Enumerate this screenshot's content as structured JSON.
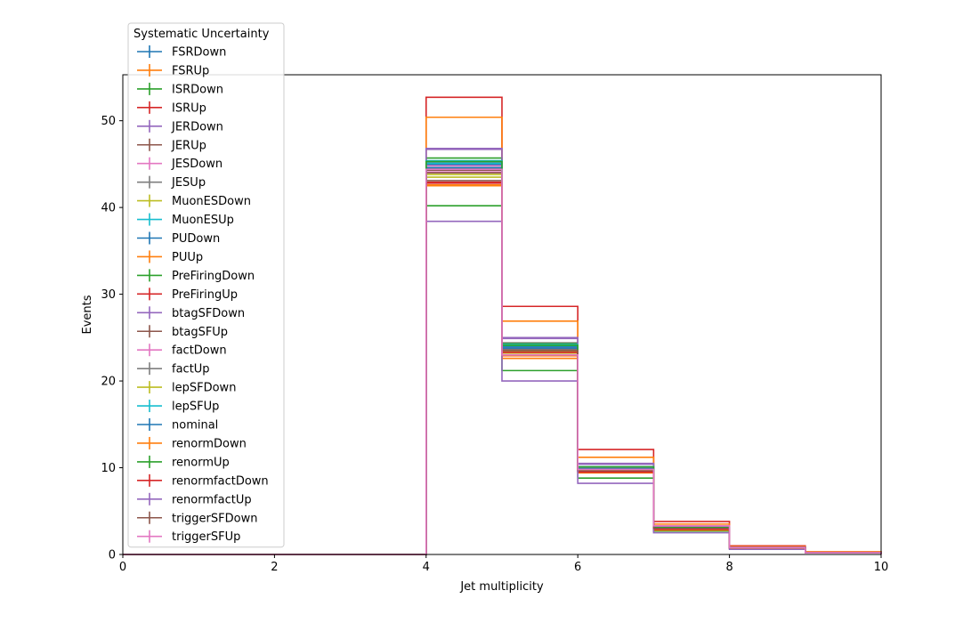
{
  "chart_data": {
    "type": "line",
    "style": "step-histogram",
    "xlabel": "Jet multiplicity",
    "ylabel": "Events",
    "xlim": [
      0,
      10
    ],
    "ylim": [
      0,
      55.3
    ],
    "xticks": [
      0,
      2,
      4,
      6,
      8,
      10
    ],
    "yticks": [
      0,
      10,
      20,
      30,
      40,
      50
    ],
    "bin_edges": [
      0,
      1,
      2,
      3,
      4,
      5,
      6,
      7,
      8,
      9,
      10
    ],
    "grid": false,
    "legend": {
      "title": "Systematic Uncertainty",
      "placement": "upper-left, above plot"
    },
    "series": [
      {
        "name": "FSRDown",
        "color": "#1f77b4",
        "values": [
          0,
          0,
          0,
          0,
          45.0,
          24.0,
          10.0,
          3.0,
          0.8,
          0.2
        ]
      },
      {
        "name": "FSRUp",
        "color": "#ff7f0e",
        "values": [
          0,
          0,
          0,
          0,
          42.6,
          22.9,
          9.6,
          2.9,
          0.8,
          0.2
        ]
      },
      {
        "name": "ISRDown",
        "color": "#2ca02c",
        "values": [
          0,
          0,
          0,
          0,
          40.2,
          21.2,
          8.8,
          2.7,
          0.7,
          0.2
        ]
      },
      {
        "name": "ISRUp",
        "color": "#d62728",
        "values": [
          0,
          0,
          0,
          0,
          52.7,
          28.6,
          12.1,
          3.8,
          1.0,
          0.3
        ]
      },
      {
        "name": "JERDown",
        "color": "#9467bd",
        "values": [
          0,
          0,
          0,
          0,
          46.7,
          24.9,
          10.4,
          3.2,
          0.8,
          0.2
        ]
      },
      {
        "name": "JERUp",
        "color": "#8c564b",
        "values": [
          0,
          0,
          0,
          0,
          44.3,
          23.6,
          9.9,
          3.0,
          0.8,
          0.2
        ]
      },
      {
        "name": "JESDown",
        "color": "#e377c2",
        "values": [
          0,
          0,
          0,
          0,
          44.1,
          22.6,
          9.7,
          3.2,
          0.8,
          0.2
        ]
      },
      {
        "name": "JESUp",
        "color": "#7f7f7f",
        "values": [
          0,
          0,
          0,
          0,
          45.2,
          24.4,
          10.0,
          3.1,
          0.8,
          0.2
        ]
      },
      {
        "name": "MuonESDown",
        "color": "#bcbd22",
        "values": [
          0,
          0,
          0,
          0,
          43.5,
          23.2,
          9.7,
          3.0,
          0.8,
          0.2
        ]
      },
      {
        "name": "MuonESUp",
        "color": "#17becf",
        "values": [
          0,
          0,
          0,
          0,
          45.1,
          24.0,
          10.0,
          3.1,
          0.8,
          0.2
        ]
      },
      {
        "name": "PUDown",
        "color": "#1f77b4",
        "values": [
          0,
          0,
          0,
          0,
          44.9,
          23.9,
          10.0,
          3.0,
          0.8,
          0.2
        ]
      },
      {
        "name": "PUUp",
        "color": "#ff7f0e",
        "values": [
          0,
          0,
          0,
          0,
          50.4,
          26.9,
          11.2,
          3.5,
          0.9,
          0.3
        ]
      },
      {
        "name": "PreFiringDown",
        "color": "#2ca02c",
        "values": [
          0,
          0,
          0,
          0,
          45.7,
          24.3,
          10.1,
          3.1,
          0.8,
          0.2
        ]
      },
      {
        "name": "PreFiringUp",
        "color": "#d62728",
        "values": [
          0,
          0,
          0,
          0,
          42.9,
          23.4,
          9.6,
          2.9,
          0.8,
          0.2
        ]
      },
      {
        "name": "btagSFDown",
        "color": "#9467bd",
        "values": [
          0,
          0,
          0,
          0,
          46.8,
          25.0,
          10.5,
          3.2,
          0.8,
          0.2
        ]
      },
      {
        "name": "btagSFUp",
        "color": "#8c564b",
        "values": [
          0,
          0,
          0,
          0,
          43.1,
          23.0,
          9.6,
          2.9,
          0.8,
          0.2
        ]
      },
      {
        "name": "factDown",
        "color": "#e377c2",
        "values": [
          0,
          0,
          0,
          0,
          44.8,
          23.8,
          10.0,
          3.0,
          0.8,
          0.2
        ]
      },
      {
        "name": "factUp",
        "color": "#7f7f7f",
        "values": [
          0,
          0,
          0,
          0,
          44.5,
          23.7,
          9.9,
          3.0,
          0.8,
          0.2
        ]
      },
      {
        "name": "lepSFDown",
        "color": "#bcbd22",
        "values": [
          0,
          0,
          0,
          0,
          43.8,
          23.4,
          9.8,
          3.0,
          0.8,
          0.2
        ]
      },
      {
        "name": "lepSFUp",
        "color": "#17becf",
        "values": [
          0,
          0,
          0,
          0,
          45.4,
          24.2,
          10.1,
          3.1,
          0.8,
          0.2
        ]
      },
      {
        "name": "nominal",
        "color": "#1f77b4",
        "values": [
          0,
          0,
          0,
          0,
          44.6,
          23.8,
          9.9,
          3.0,
          0.8,
          0.2
        ]
      },
      {
        "name": "renormDown",
        "color": "#ff7f0e",
        "values": [
          0,
          0,
          0,
          0,
          42.5,
          22.6,
          9.4,
          2.8,
          0.7,
          0.2
        ]
      },
      {
        "name": "renormUp",
        "color": "#2ca02c",
        "values": [
          0,
          0,
          0,
          0,
          45.3,
          24.1,
          10.1,
          3.1,
          0.8,
          0.2
        ]
      },
      {
        "name": "renormfactDown",
        "color": "#d62728",
        "values": [
          0,
          0,
          0,
          0,
          42.8,
          23.3,
          9.5,
          2.9,
          0.8,
          0.2
        ]
      },
      {
        "name": "renormfactUp",
        "color": "#9467bd",
        "values": [
          0,
          0,
          0,
          0,
          38.4,
          20.0,
          8.2,
          2.5,
          0.6,
          0.2
        ]
      },
      {
        "name": "triggerSFDown",
        "color": "#8c564b",
        "values": [
          0,
          0,
          0,
          0,
          44.0,
          23.5,
          9.8,
          3.0,
          0.8,
          0.2
        ]
      },
      {
        "name": "triggerSFUp",
        "color": "#e377c2",
        "values": [
          0,
          0,
          0,
          0,
          44.4,
          23.0,
          9.8,
          3.3,
          0.8,
          0.2
        ]
      }
    ]
  }
}
